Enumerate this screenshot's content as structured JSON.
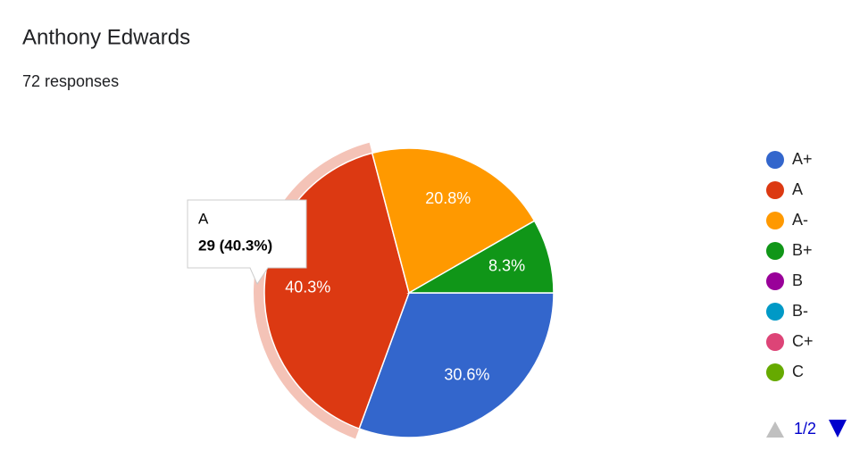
{
  "chart_data": {
    "type": "pie",
    "title": "Anthony Edwards",
    "subtitle": "72 responses",
    "categories": [
      "A+",
      "A",
      "A-",
      "B+",
      "B",
      "B-",
      "C+",
      "C"
    ],
    "values": [
      30.6,
      40.3,
      20.8,
      8.3,
      0,
      0,
      0,
      0
    ],
    "value_labels": [
      "30.6%",
      "40.3%",
      "20.8%",
      "8.3%",
      null,
      null,
      null,
      null
    ],
    "colors": [
      "#3366cc",
      "#dc3912",
      "#ff9900",
      "#109618",
      "#990099",
      "#0099c6",
      "#dd4477",
      "#66aa00"
    ],
    "legend": "right",
    "legend_page": "1/2",
    "tooltip": {
      "category": "A",
      "text": "29 (40.3%)"
    }
  }
}
